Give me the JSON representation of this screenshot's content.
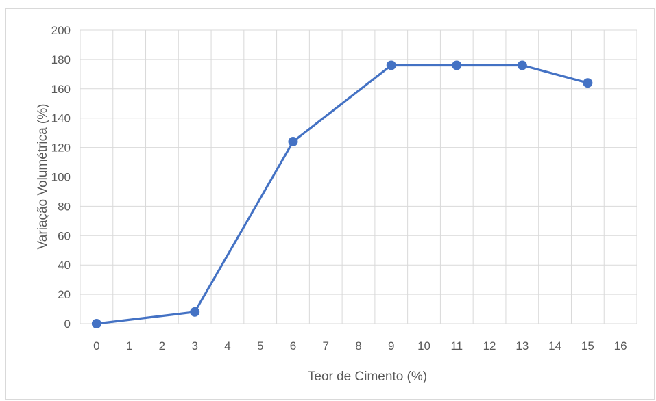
{
  "chart_data": {
    "type": "line",
    "x_categories": [
      "0",
      "1",
      "2",
      "3",
      "4",
      "5",
      "6",
      "7",
      "8",
      "9",
      "10",
      "11",
      "12",
      "13",
      "14",
      "15",
      "16"
    ],
    "y_ticks": [
      "0",
      "20",
      "40",
      "60",
      "80",
      "100",
      "120",
      "140",
      "160",
      "180",
      "200"
    ],
    "ylim": [
      0,
      200
    ],
    "xlabel": "Teor de Cimento  (%)",
    "ylabel": "Variação Volumétrica (%)",
    "grid": true,
    "legend": "none",
    "series": [
      {
        "color": "#4472c4",
        "points": [
          {
            "x": "0",
            "y": 0
          },
          {
            "x": "3",
            "y": 8
          },
          {
            "x": "6",
            "y": 124
          },
          {
            "x": "9",
            "y": 176
          },
          {
            "x": "11",
            "y": 176
          },
          {
            "x": "13",
            "y": 176
          },
          {
            "x": "15",
            "y": 164
          }
        ]
      }
    ]
  }
}
